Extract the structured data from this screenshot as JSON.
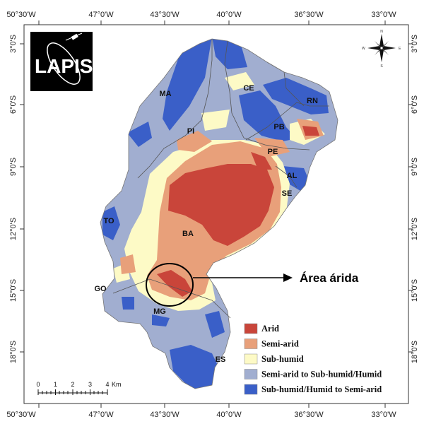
{
  "map": {
    "top_ticks": [
      "50°30'W",
      "47°0'W",
      "43°30'W",
      "40°0'W",
      "36°30'W",
      "33°0'W"
    ],
    "bottom_ticks": [
      "50°30'W",
      "47°0'W",
      "43°30'W",
      "40°0'W",
      "36°30'W",
      "33°0'W"
    ],
    "left_ticks": [
      "3°0'S",
      "6°0'S",
      "9°0'S",
      "12°0'S",
      "15°0'S",
      "18°0'S"
    ],
    "right_ticks": [
      "3°0'S",
      "6°0'S",
      "9°0'S",
      "12°0'S",
      "15°0'S",
      "18°0'S"
    ],
    "states": [
      "MA",
      "CE",
      "RN",
      "PI",
      "PB",
      "PE",
      "AL",
      "SE",
      "TO",
      "BA",
      "GO",
      "MG",
      "ES"
    ],
    "annotation": "Área árida",
    "logo": "LAPIS",
    "compass": {
      "n": "N",
      "s": "S",
      "e": "E",
      "w": "W"
    },
    "scale": {
      "labels": [
        "0",
        "1",
        "2",
        "3",
        "4"
      ],
      "unit": "Km"
    },
    "legend": {
      "items": [
        {
          "label": "Arid",
          "color": "#c9453a"
        },
        {
          "label": "Semi-arid",
          "color": "#e8a07a"
        },
        {
          "label": "Sub-humid",
          "color": "#fdfac6"
        },
        {
          "label": "Semi-arid to Sub-humid/Humid",
          "color": "#a1aed0"
        },
        {
          "label": "Sub-humid/Humid to Semi-arid",
          "color": "#3a5fc8"
        }
      ]
    }
  }
}
